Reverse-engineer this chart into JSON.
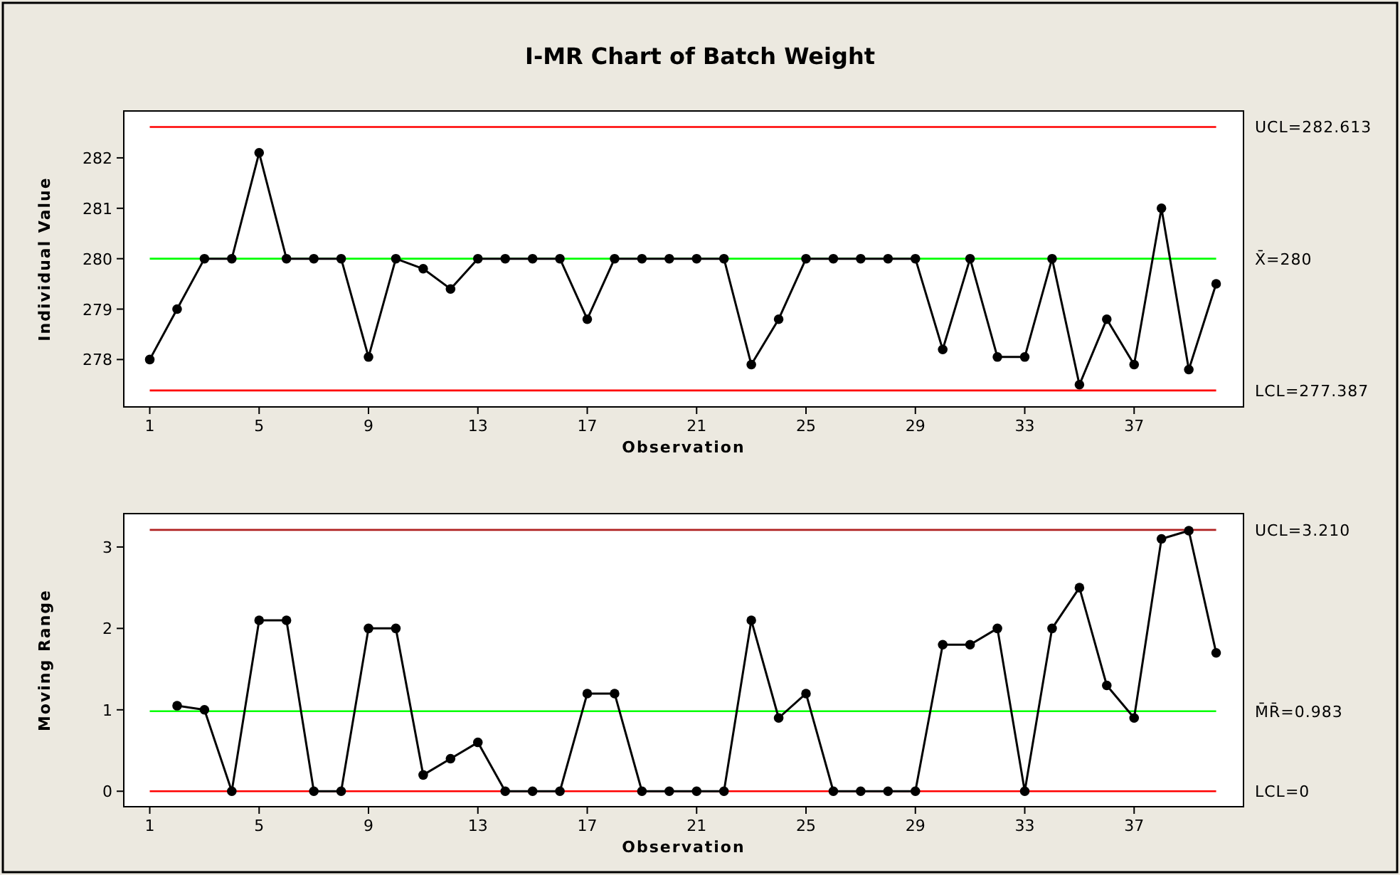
{
  "chart_data": [
    {
      "type": "line",
      "title": "I-MR Chart of Batch Weight",
      "xlabel": "Observation",
      "ylabel": "Individual Value",
      "x": [
        1,
        2,
        3,
        4,
        5,
        6,
        7,
        8,
        9,
        10,
        11,
        12,
        13,
        14,
        15,
        16,
        17,
        18,
        19,
        20,
        21,
        22,
        23,
        24,
        25,
        26,
        27,
        28,
        29,
        30,
        31,
        32,
        33,
        34,
        35,
        36,
        37,
        38,
        39,
        40
      ],
      "xlim": [
        0.05,
        41
      ],
      "xticks": [
        1,
        5,
        9,
        13,
        17,
        21,
        25,
        29,
        33,
        37
      ],
      "ylim": [
        277.06,
        282.93
      ],
      "yticks": [
        278,
        279,
        280,
        281,
        282
      ],
      "grid": false,
      "marker": "circle",
      "line_style": "solid",
      "series": [
        {
          "color": "#000000",
          "values": [
            278,
            279,
            280,
            280,
            282.1,
            280,
            280,
            280,
            278.05,
            280,
            279.8,
            279.4,
            280,
            280,
            280,
            280,
            278.8,
            280,
            280,
            280,
            280,
            280,
            277.9,
            278.8,
            280,
            280,
            280,
            280,
            280,
            278.2,
            280,
            278.05,
            278.05,
            280,
            277.5,
            278.8,
            277.9,
            281,
            277.8,
            279.5
          ]
        }
      ],
      "ref_lines": [
        {
          "axis": "y",
          "value": 282.613,
          "label": "UCL=282.613",
          "color": "#ff0000"
        },
        {
          "axis": "y",
          "value": 280,
          "label": "X̄=280",
          "color": "#00ff00"
        },
        {
          "axis": "y",
          "value": 277.387,
          "label": "LCL=277.387",
          "color": "#ff0000"
        }
      ]
    },
    {
      "type": "line",
      "xlabel": "Observation",
      "ylabel": "Moving Range",
      "x": [
        2,
        3,
        4,
        5,
        6,
        7,
        8,
        9,
        10,
        11,
        12,
        13,
        14,
        15,
        16,
        17,
        18,
        19,
        20,
        21,
        22,
        23,
        24,
        25,
        26,
        27,
        28,
        29,
        30,
        31,
        32,
        33,
        34,
        35,
        36,
        37,
        38,
        39,
        40
      ],
      "xlim": [
        0.05,
        41
      ],
      "xticks": [
        1,
        5,
        9,
        13,
        17,
        21,
        25,
        29,
        33,
        37
      ],
      "ylim": [
        -0.19,
        3.41
      ],
      "yticks": [
        0,
        1,
        2,
        3
      ],
      "grid": false,
      "marker": "circle",
      "line_style": "solid",
      "series": [
        {
          "color": "#000000",
          "values": [
            1.05,
            1.0,
            0,
            2.1,
            2.1,
            0,
            0,
            2.0,
            2.0,
            0.2,
            0.4,
            0.6,
            0,
            0,
            0,
            1.2,
            1.2,
            0,
            0,
            0,
            0,
            2.1,
            0.9,
            1.2,
            0,
            0,
            0,
            0,
            1.8,
            1.8,
            2.0,
            0,
            2.0,
            2.5,
            1.3,
            0.9,
            3.1,
            3.2,
            1.7
          ]
        }
      ],
      "ref_lines": [
        {
          "axis": "y",
          "value": 3.21,
          "label": "UCL=3.210",
          "color": "#b02020"
        },
        {
          "axis": "y",
          "value": 0.983,
          "label": "M̄R̄=0.983",
          "color": "#00ff00"
        },
        {
          "axis": "y",
          "value": 0,
          "label": "LCL=0",
          "color": "#ff0000"
        }
      ]
    }
  ]
}
